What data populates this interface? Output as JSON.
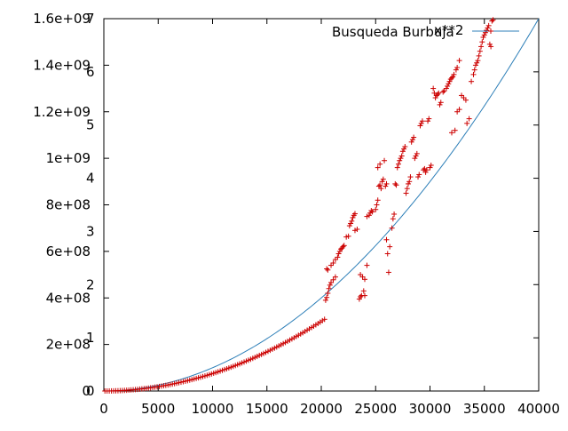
{
  "chart_data": {
    "type": "scatter",
    "title": "",
    "xlabel": "",
    "ylabel": "",
    "xlim": [
      0,
      40000
    ],
    "ylim": [
      0,
      1600000000
    ],
    "grid": false,
    "legend_position": "top-right",
    "x_ticks": [
      "0",
      "5000",
      "10000",
      "15000",
      "20000",
      "25000",
      "30000",
      "35000",
      "40000"
    ],
    "y_ticks_left": [
      "0",
      "2e+08",
      "4e+08",
      "6e+08",
      "8e+08",
      "1e+09",
      "1.2e+09",
      "1.4e+09",
      "1.6e+09"
    ],
    "y2_ticks_inner": [
      "0",
      "1",
      "2",
      "3",
      "4",
      "5",
      "6",
      "7"
    ],
    "y2lim": [
      0,
      7
    ],
    "series": [
      {
        "name": "Busqueda Burbuja",
        "kind": "scatter",
        "marker": "plus",
        "color": "#cc0000",
        "points": [
          [
            100,
            30000
          ],
          [
            300,
            100000
          ],
          [
            500,
            200000
          ],
          [
            700,
            350000
          ],
          [
            900,
            600000
          ],
          [
            1100,
            900000
          ],
          [
            1300,
            1200000
          ],
          [
            1500,
            1700000
          ],
          [
            1700,
            2100000
          ],
          [
            1900,
            2700000
          ],
          [
            2100,
            3300000
          ],
          [
            2300,
            4000000
          ],
          [
            2500,
            4700000
          ],
          [
            2700,
            5400000
          ],
          [
            2900,
            6300000
          ],
          [
            3100,
            7100000
          ],
          [
            3300,
            8200000
          ],
          [
            3500,
            9200000
          ],
          [
            3700,
            10300000
          ],
          [
            3900,
            11400000
          ],
          [
            4100,
            12600000
          ],
          [
            4300,
            13800000
          ],
          [
            4500,
            15200000
          ],
          [
            4700,
            16600000
          ],
          [
            4900,
            18000000
          ],
          [
            5100,
            19500000
          ],
          [
            5300,
            21100000
          ],
          [
            5500,
            22700000
          ],
          [
            5700,
            24300000
          ],
          [
            5900,
            26100000
          ],
          [
            6100,
            27900000
          ],
          [
            6300,
            29700000
          ],
          [
            6500,
            31700000
          ],
          [
            6700,
            33600000
          ],
          [
            6900,
            35700000
          ],
          [
            7100,
            37800000
          ],
          [
            7300,
            40000000
          ],
          [
            7500,
            42200000
          ],
          [
            7700,
            44400000
          ],
          [
            7900,
            46800000
          ],
          [
            8100,
            49200000
          ],
          [
            8300,
            51600000
          ],
          [
            8500,
            54100000
          ],
          [
            8700,
            56700000
          ],
          [
            8900,
            59300000
          ],
          [
            9100,
            62000000
          ],
          [
            9300,
            64700000
          ],
          [
            9500,
            67500000
          ],
          [
            9700,
            70400000
          ],
          [
            9900,
            73300000
          ],
          [
            10100,
            76300000
          ],
          [
            10300,
            79400000
          ],
          [
            10500,
            82500000
          ],
          [
            10700,
            85700000
          ],
          [
            10900,
            88900000
          ],
          [
            11100,
            92200000
          ],
          [
            11300,
            95500000
          ],
          [
            11500,
            98900000
          ],
          [
            11700,
            102400000
          ],
          [
            11900,
            105900000
          ],
          [
            12100,
            109500000
          ],
          [
            12300,
            113200000
          ],
          [
            12500,
            116900000
          ],
          [
            12700,
            120700000
          ],
          [
            12900,
            124500000
          ],
          [
            13100,
            128400000
          ],
          [
            13300,
            132300000
          ],
          [
            13500,
            136300000
          ],
          [
            13700,
            140400000
          ],
          [
            13900,
            144500000
          ],
          [
            14100,
            148700000
          ],
          [
            14300,
            153000000
          ],
          [
            14500,
            157300000
          ],
          [
            14700,
            161600000
          ],
          [
            14900,
            166100000
          ],
          [
            15100,
            170600000
          ],
          [
            15300,
            175100000
          ],
          [
            15500,
            179700000
          ],
          [
            15700,
            184400000
          ],
          [
            15900,
            189100000
          ],
          [
            16100,
            193900000
          ],
          [
            16300,
            198700000
          ],
          [
            16500,
            203600000
          ],
          [
            16700,
            208600000
          ],
          [
            16900,
            213600000
          ],
          [
            17100,
            218700000
          ],
          [
            17300,
            223800000
          ],
          [
            17500,
            229000000
          ],
          [
            17700,
            234300000
          ],
          [
            17900,
            239600000
          ],
          [
            18100,
            245000000
          ],
          [
            18300,
            250400000
          ],
          [
            18500,
            255900000
          ],
          [
            18700,
            261500000
          ],
          [
            18900,
            267100000
          ],
          [
            19100,
            272800000
          ],
          [
            19300,
            278500000
          ],
          [
            19500,
            284300000
          ],
          [
            19700,
            290200000
          ],
          [
            19900,
            296100000
          ],
          [
            20100,
            302100000
          ],
          [
            20300,
            308100000
          ],
          [
            20400,
            390000000
          ],
          [
            20500,
            402000000
          ],
          [
            20600,
            420000000
          ],
          [
            20700,
            440000000
          ],
          [
            20800,
            455000000
          ],
          [
            20900,
            466000000
          ],
          [
            21100,
            478000000
          ],
          [
            21300,
            490000000
          ],
          [
            20500,
            525000000
          ],
          [
            20600,
            520000000
          ],
          [
            20900,
            540000000
          ],
          [
            21100,
            550000000
          ],
          [
            21300,
            565000000
          ],
          [
            21500,
            575000000
          ],
          [
            21600,
            590000000
          ],
          [
            21700,
            600000000
          ],
          [
            21800,
            610000000
          ],
          [
            21900,
            614000000
          ],
          [
            22000,
            620000000
          ],
          [
            22100,
            625000000
          ],
          [
            22300,
            662000000
          ],
          [
            22500,
            665000000
          ],
          [
            22600,
            710000000
          ],
          [
            22700,
            720000000
          ],
          [
            22800,
            730000000
          ],
          [
            22900,
            745000000
          ],
          [
            23000,
            755000000
          ],
          [
            23100,
            762000000
          ],
          [
            23100,
            690000000
          ],
          [
            23300,
            695000000
          ],
          [
            23500,
            395000000
          ],
          [
            23600,
            405000000
          ],
          [
            23700,
            410000000
          ],
          [
            23900,
            430000000
          ],
          [
            24000,
            410000000
          ],
          [
            23600,
            500000000
          ],
          [
            23800,
            490000000
          ],
          [
            24000,
            480000000
          ],
          [
            24200,
            540000000
          ],
          [
            24200,
            750000000
          ],
          [
            24400,
            755000000
          ],
          [
            24500,
            765000000
          ],
          [
            24600,
            775000000
          ],
          [
            24700,
            770000000
          ],
          [
            25000,
            780000000
          ],
          [
            25100,
            800000000
          ],
          [
            25200,
            820000000
          ],
          [
            25300,
            880000000
          ],
          [
            25400,
            885000000
          ],
          [
            25500,
            870000000
          ],
          [
            25600,
            900000000
          ],
          [
            25700,
            910000000
          ],
          [
            25200,
            960000000
          ],
          [
            25400,
            975000000
          ],
          [
            25800,
            990000000
          ],
          [
            25900,
            880000000
          ],
          [
            26000,
            890000000
          ],
          [
            26000,
            650000000
          ],
          [
            26100,
            590000000
          ],
          [
            26200,
            510000000
          ],
          [
            26300,
            620000000
          ],
          [
            26500,
            700000000
          ],
          [
            26600,
            740000000
          ],
          [
            26700,
            760000000
          ],
          [
            26800,
            890000000
          ],
          [
            26900,
            885000000
          ],
          [
            27000,
            960000000
          ],
          [
            27100,
            975000000
          ],
          [
            27200,
            990000000
          ],
          [
            27300,
            1000000000
          ],
          [
            27400,
            1010000000
          ],
          [
            27500,
            1030000000
          ],
          [
            27600,
            1040000000
          ],
          [
            27700,
            1050000000
          ],
          [
            27800,
            850000000
          ],
          [
            27900,
            870000000
          ],
          [
            28000,
            890000000
          ],
          [
            28100,
            900000000
          ],
          [
            28200,
            920000000
          ],
          [
            28300,
            1070000000
          ],
          [
            28400,
            1080000000
          ],
          [
            28500,
            1090000000
          ],
          [
            28600,
            1000000000
          ],
          [
            28700,
            1010000000
          ],
          [
            28800,
            1020000000
          ],
          [
            28900,
            920000000
          ],
          [
            29000,
            930000000
          ],
          [
            29100,
            1140000000
          ],
          [
            29200,
            1150000000
          ],
          [
            29300,
            1160000000
          ],
          [
            29400,
            950000000
          ],
          [
            29500,
            955000000
          ],
          [
            29600,
            940000000
          ],
          [
            29700,
            950000000
          ],
          [
            29800,
            1160000000
          ],
          [
            29900,
            1170000000
          ],
          [
            30000,
            960000000
          ],
          [
            30100,
            970000000
          ],
          [
            30300,
            1300000000
          ],
          [
            30400,
            1280000000
          ],
          [
            30500,
            1260000000
          ],
          [
            30600,
            1270000000
          ],
          [
            30700,
            1275000000
          ],
          [
            30800,
            1280000000
          ],
          [
            30900,
            1230000000
          ],
          [
            31000,
            1240000000
          ],
          [
            31200,
            1285000000
          ],
          [
            31300,
            1290000000
          ],
          [
            31500,
            1300000000
          ],
          [
            31600,
            1310000000
          ],
          [
            31700,
            1320000000
          ],
          [
            31800,
            1330000000
          ],
          [
            31900,
            1340000000
          ],
          [
            32000,
            1345000000
          ],
          [
            32100,
            1350000000
          ],
          [
            32200,
            1360000000
          ],
          [
            32400,
            1380000000
          ],
          [
            32500,
            1390000000
          ],
          [
            32700,
            1420000000
          ],
          [
            32000,
            1110000000
          ],
          [
            32300,
            1120000000
          ],
          [
            32500,
            1200000000
          ],
          [
            32700,
            1210000000
          ],
          [
            32900,
            1270000000
          ],
          [
            33100,
            1260000000
          ],
          [
            33300,
            1250000000
          ],
          [
            33400,
            1150000000
          ],
          [
            33600,
            1170000000
          ],
          [
            33800,
            1330000000
          ],
          [
            34000,
            1360000000
          ],
          [
            34100,
            1380000000
          ],
          [
            34200,
            1400000000
          ],
          [
            34300,
            1410000000
          ],
          [
            34400,
            1420000000
          ],
          [
            34500,
            1440000000
          ],
          [
            34600,
            1460000000
          ],
          [
            34700,
            1480000000
          ],
          [
            34800,
            1500000000
          ],
          [
            34900,
            1520000000
          ],
          [
            35000,
            1530000000
          ],
          [
            35100,
            1540000000
          ],
          [
            35200,
            1550000000
          ],
          [
            35300,
            1560000000
          ],
          [
            35400,
            1570000000
          ],
          [
            35500,
            1490000000
          ],
          [
            35600,
            1480000000
          ],
          [
            35700,
            1590000000
          ],
          [
            35800,
            1595000000
          ]
        ]
      },
      {
        "name": "x**2",
        "kind": "line",
        "color": "#2d7fb8",
        "axis": "y2",
        "function": "x^2",
        "x_range": [
          0,
          40000
        ]
      }
    ]
  }
}
